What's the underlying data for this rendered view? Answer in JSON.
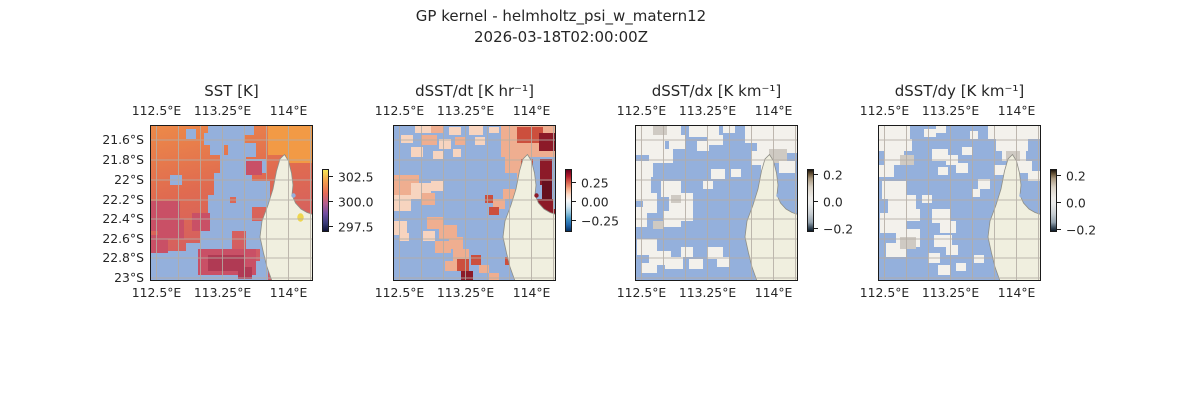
{
  "figure": {
    "title": "GP kernel - helmholtz_psi_w_matern12",
    "timestamp": "2026-03-18T02:00:00Z"
  },
  "axis": {
    "x_ticks": [
      "112.5°E",
      "113.25°E",
      "114°E"
    ],
    "y_ticks": [
      "21.6°S",
      "21.8°S",
      "22°S",
      "22.2°S",
      "22.4°S",
      "22.6°S",
      "22.8°S",
      "23°S"
    ]
  },
  "panels": [
    {
      "title": "SST [K]",
      "colorbar_ticks": [
        "302.5",
        "300.0",
        "297.5"
      ]
    },
    {
      "title": "dSST/dt [K hr⁻¹]",
      "colorbar_ticks": [
        "0.25",
        "0.00",
        "−0.25"
      ]
    },
    {
      "title": "dSST/dx [K km⁻¹]",
      "colorbar_ticks": [
        "0.2",
        "0.0",
        "−0.2"
      ]
    },
    {
      "title": "dSST/dy [K km⁻¹]",
      "colorbar_ticks": [
        "0.2",
        "0.0",
        "−0.2"
      ]
    }
  ],
  "chart_data": [
    {
      "type": "heatmap",
      "title": "SST [K]",
      "x_tick_labels": [
        "112.5°E",
        "113.25°E",
        "114°E"
      ],
      "y_tick_labels": [
        "21.6°S",
        "21.8°S",
        "22°S",
        "22.2°S",
        "22.4°S",
        "22.6°S",
        "22.8°S",
        "23°S"
      ],
      "lon_range_est": [
        112.4,
        114.2
      ],
      "lat_range_est": [
        -23.05,
        -21.45
      ],
      "colorbar_tick_values": [
        302.5,
        300.0,
        297.5
      ],
      "colormap": "thermal (dark navy to purple to orange to yellow)",
      "notes": "Satellite SST field ~297-303 K; light-blue = cloud/no-data mask; cream landmass (NW Cape peninsula) lower right; gray lat/lon gridlines every 0.25 deg lon / 0.2 deg lat",
      "palette": {
        "m": "#94b0dc",
        "r": "#c95066",
        "R": "#b03a54",
        "o": "#f29a45",
        "y": "#eed64e"
      },
      "cells": [
        [
          58,
          0,
          46,
          10,
          "m"
        ],
        [
          54,
          8,
          40,
          12,
          "m"
        ],
        [
          36,
          4,
          10,
          10,
          "m"
        ],
        [
          78,
          18,
          28,
          14,
          "m"
        ],
        [
          60,
          20,
          14,
          10,
          "m"
        ],
        [
          70,
          30,
          26,
          20,
          "m"
        ],
        [
          96,
          34,
          20,
          14,
          "m"
        ],
        [
          64,
          48,
          24,
          24,
          "m"
        ],
        [
          86,
          46,
          16,
          34,
          "m"
        ],
        [
          100,
          56,
          20,
          26,
          "m"
        ],
        [
          58,
          70,
          22,
          32,
          "m"
        ],
        [
          78,
          78,
          24,
          28,
          "m"
        ],
        [
          96,
          96,
          20,
          28,
          "m"
        ],
        [
          50,
          98,
          32,
          26,
          "m"
        ],
        [
          20,
          50,
          12,
          10,
          "m"
        ],
        [
          36,
          118,
          40,
          22,
          "m"
        ],
        [
          0,
          126,
          42,
          30,
          "m"
        ],
        [
          40,
          136,
          78,
          20,
          "m"
        ],
        [
          110,
          118,
          10,
          24,
          "m"
        ],
        [
          118,
          0,
          45,
          30,
          "o"
        ],
        [
          136,
          24,
          27,
          14,
          "o"
        ],
        [
          0,
          76,
          30,
          30,
          "r"
        ],
        [
          8,
          94,
          26,
          20,
          "r"
        ],
        [
          42,
          88,
          18,
          18,
          "r"
        ],
        [
          96,
          36,
          16,
          14,
          "r"
        ],
        [
          0,
          110,
          18,
          18,
          "r"
        ],
        [
          48,
          124,
          58,
          26,
          "r"
        ],
        [
          58,
          130,
          36,
          16,
          "R"
        ],
        [
          88,
          142,
          14,
          12,
          "R"
        ]
      ]
    },
    {
      "type": "heatmap",
      "title": "dSST/dt [K hr⁻¹]",
      "x_tick_labels": [
        "112.5°E",
        "113.25°E",
        "114°E"
      ],
      "y_tick_labels": [
        "21.6°S",
        "21.8°S",
        "22°S",
        "22.2°S",
        "22.4°S",
        "22.6°S",
        "22.8°S",
        "23°S"
      ],
      "lon_range_est": [
        112.4,
        114.2
      ],
      "lat_range_est": [
        -23.05,
        -21.45
      ],
      "colorbar_tick_values": [
        0.25,
        0.0,
        -0.25
      ],
      "colormap": "RdBu reversed (red positive, blue negative)",
      "notes": "Mostly small positive patches (salmon) with strong positive (dark red) values in the gulf east of the peninsula and near the coast; light-blue = masked",
      "palette": {
        "l": "#f7d4bf",
        "s": "#efae90",
        "r": "#cc4f3d",
        "d": "#8c1a28",
        "D": "#66101f"
      },
      "cells": [
        [
          22,
          0,
          16,
          8,
          "l"
        ],
        [
          38,
          0,
          12,
          8,
          "s"
        ],
        [
          56,
          2,
          12,
          8,
          "l"
        ],
        [
          76,
          0,
          14,
          10,
          "l"
        ],
        [
          96,
          2,
          10,
          6,
          "l"
        ],
        [
          8,
          10,
          12,
          8,
          "l"
        ],
        [
          28,
          10,
          16,
          10,
          "s"
        ],
        [
          46,
          14,
          12,
          10,
          "l"
        ],
        [
          62,
          12,
          10,
          8,
          "s"
        ],
        [
          82,
          12,
          10,
          8,
          "l"
        ],
        [
          18,
          22,
          12,
          10,
          "l"
        ],
        [
          40,
          26,
          10,
          8,
          "l"
        ],
        [
          60,
          24,
          8,
          8,
          "l"
        ],
        [
          0,
          50,
          26,
          22,
          "s"
        ],
        [
          18,
          58,
          20,
          16,
          "l"
        ],
        [
          0,
          70,
          18,
          16,
          "l"
        ],
        [
          28,
          68,
          14,
          12,
          "s"
        ],
        [
          38,
          56,
          12,
          10,
          "l"
        ],
        [
          108,
          0,
          55,
          32,
          "s"
        ],
        [
          124,
          2,
          26,
          16,
          "r"
        ],
        [
          146,
          8,
          17,
          18,
          "d"
        ],
        [
          112,
          26,
          22,
          22,
          "s"
        ],
        [
          124,
          42,
          14,
          16,
          "s"
        ],
        [
          128,
          34,
          12,
          18,
          "r"
        ],
        [
          147,
          34,
          12,
          26,
          "d"
        ],
        [
          149,
          56,
          10,
          22,
          "D"
        ],
        [
          144,
          74,
          16,
          14,
          "d"
        ],
        [
          150,
          84,
          13,
          12,
          "d"
        ],
        [
          92,
          70,
          8,
          8,
          "r"
        ],
        [
          100,
          74,
          12,
          10,
          "s"
        ],
        [
          96,
          82,
          10,
          8,
          "r"
        ],
        [
          110,
          64,
          12,
          10,
          "s"
        ],
        [
          34,
          92,
          16,
          12,
          "s"
        ],
        [
          46,
          100,
          18,
          14,
          "s"
        ],
        [
          30,
          106,
          12,
          10,
          "l"
        ],
        [
          42,
          116,
          16,
          12,
          "s"
        ],
        [
          56,
          112,
          14,
          12,
          "s"
        ],
        [
          60,
          124,
          16,
          12,
          "s"
        ],
        [
          52,
          136,
          12,
          10,
          "s"
        ],
        [
          64,
          134,
          12,
          12,
          "r"
        ],
        [
          68,
          146,
          12,
          10,
          "d"
        ],
        [
          78,
          130,
          10,
          10,
          "r"
        ],
        [
          86,
          140,
          10,
          8,
          "s"
        ],
        [
          0,
          96,
          14,
          14,
          "l"
        ],
        [
          6,
          108,
          10,
          8,
          "l"
        ],
        [
          112,
          132,
          8,
          8,
          "r"
        ],
        [
          96,
          148,
          10,
          8,
          "s"
        ]
      ]
    },
    {
      "type": "heatmap",
      "title": "dSST/dx [K km⁻¹]",
      "x_tick_labels": [
        "112.5°E",
        "113.25°E",
        "114°E"
      ],
      "y_tick_labels": [
        "21.6°S",
        "21.8°S",
        "22°S",
        "22.2°S",
        "22.4°S",
        "22.6°S",
        "22.8°S",
        "23°S"
      ],
      "lon_range_est": [
        112.4,
        114.2
      ],
      "lat_range_est": [
        -23.05,
        -21.45
      ],
      "colorbar_tick_values": [
        0.2,
        0.0,
        -0.2
      ],
      "colormap": "diverging brown-gray-blue, near-white center",
      "notes": "Gradient values near zero (whitish/pale-gray patches) over most retrieved pixels; light-blue = masked",
      "palette": {
        "w": "#f3f1ec",
        "g": "#cfcac3",
        "d": "#b7b1a9"
      },
      "cells": [
        [
          0,
          0,
          46,
          16,
          "w"
        ],
        [
          0,
          12,
          30,
          18,
          "w"
        ],
        [
          14,
          24,
          24,
          14,
          "w"
        ],
        [
          34,
          10,
          16,
          14,
          "w"
        ],
        [
          0,
          36,
          18,
          16,
          "w"
        ],
        [
          18,
          0,
          14,
          10,
          "g"
        ],
        [
          54,
          0,
          30,
          12,
          "w"
        ],
        [
          72,
          10,
          16,
          10,
          "w"
        ],
        [
          62,
          16,
          12,
          10,
          "w"
        ],
        [
          88,
          0,
          12,
          8,
          "w"
        ],
        [
          110,
          0,
          53,
          18,
          "w"
        ],
        [
          122,
          14,
          41,
          14,
          "w"
        ],
        [
          116,
          26,
          22,
          14,
          "w"
        ],
        [
          134,
          24,
          18,
          14,
          "g"
        ],
        [
          144,
          36,
          16,
          12,
          "w"
        ],
        [
          126,
          40,
          12,
          10,
          "w"
        ],
        [
          0,
          52,
          16,
          24,
          "w"
        ],
        [
          8,
          68,
          14,
          20,
          "w"
        ],
        [
          0,
          82,
          12,
          20,
          "w"
        ],
        [
          26,
          56,
          20,
          16,
          "w"
        ],
        [
          34,
          68,
          24,
          20,
          "w"
        ],
        [
          28,
          86,
          18,
          16,
          "w"
        ],
        [
          44,
          84,
          14,
          12,
          "w"
        ],
        [
          76,
          44,
          14,
          10,
          "w"
        ],
        [
          68,
          56,
          10,
          8,
          "w"
        ],
        [
          96,
          44,
          10,
          8,
          "w"
        ],
        [
          2,
          114,
          20,
          16,
          "w"
        ],
        [
          14,
          126,
          22,
          14,
          "w"
        ],
        [
          30,
          132,
          18,
          12,
          "w"
        ],
        [
          6,
          138,
          16,
          10,
          "w"
        ],
        [
          46,
          122,
          12,
          10,
          "w"
        ],
        [
          54,
          134,
          14,
          10,
          "w"
        ],
        [
          72,
          122,
          16,
          12,
          "w"
        ],
        [
          82,
          132,
          12,
          10,
          "w"
        ],
        [
          36,
          70,
          10,
          8,
          "g"
        ],
        [
          18,
          96,
          10,
          8,
          "g"
        ]
      ]
    },
    {
      "type": "heatmap",
      "title": "dSST/dy [K km⁻¹]",
      "x_tick_labels": [
        "112.5°E",
        "113.25°E",
        "114°E"
      ],
      "y_tick_labels": [
        "21.6°S",
        "21.8°S",
        "22°S",
        "22.2°S",
        "22.4°S",
        "22.6°S",
        "22.8°S",
        "23°S"
      ],
      "lon_range_est": [
        112.4,
        114.2
      ],
      "lat_range_est": [
        -23.05,
        -21.45
      ],
      "colorbar_tick_values": [
        0.2,
        0.0,
        -0.2
      ],
      "colormap": "diverging brown-gray-blue, near-white center",
      "notes": "Gradient values near zero (whitish/pale-gray patches); light-blue = masked",
      "palette": {
        "w": "#f3f1ec",
        "g": "#cfcac3",
        "d": "#b7b1a9"
      },
      "cells": [
        [
          0,
          0,
          32,
          14,
          "w"
        ],
        [
          0,
          10,
          22,
          16,
          "w"
        ],
        [
          16,
          14,
          18,
          12,
          "w"
        ],
        [
          6,
          26,
          20,
          14,
          "w"
        ],
        [
          22,
          30,
          14,
          10,
          "g"
        ],
        [
          0,
          40,
          16,
          12,
          "w"
        ],
        [
          46,
          4,
          12,
          8,
          "w"
        ],
        [
          58,
          0,
          10,
          8,
          "w"
        ],
        [
          54,
          24,
          16,
          12,
          "w"
        ],
        [
          68,
          30,
          12,
          10,
          "w"
        ],
        [
          78,
          38,
          12,
          10,
          "w"
        ],
        [
          60,
          42,
          10,
          8,
          "w"
        ],
        [
          84,
          22,
          10,
          8,
          "w"
        ],
        [
          92,
          6,
          8,
          8,
          "w"
        ],
        [
          110,
          0,
          53,
          14,
          "w"
        ],
        [
          118,
          12,
          32,
          14,
          "w"
        ],
        [
          124,
          24,
          24,
          12,
          "w"
        ],
        [
          128,
          26,
          14,
          10,
          "g"
        ],
        [
          138,
          36,
          16,
          12,
          "w"
        ],
        [
          116,
          40,
          12,
          10,
          "w"
        ],
        [
          150,
          46,
          13,
          10,
          "w"
        ],
        [
          4,
          56,
          24,
          18,
          "w"
        ],
        [
          10,
          70,
          28,
          22,
          "w"
        ],
        [
          2,
          88,
          26,
          20,
          "w"
        ],
        [
          18,
          104,
          24,
          18,
          "w"
        ],
        [
          8,
          118,
          20,
          14,
          "w"
        ],
        [
          28,
          84,
          14,
          12,
          "w"
        ],
        [
          22,
          112,
          16,
          12,
          "g"
        ],
        [
          54,
          84,
          18,
          14,
          "w"
        ],
        [
          62,
          96,
          16,
          12,
          "w"
        ],
        [
          56,
          110,
          18,
          12,
          "w"
        ],
        [
          68,
          120,
          12,
          10,
          "w"
        ],
        [
          50,
          128,
          12,
          10,
          "w"
        ],
        [
          44,
          70,
          10,
          8,
          "w"
        ],
        [
          100,
          54,
          12,
          10,
          "w"
        ],
        [
          94,
          64,
          8,
          8,
          "w"
        ],
        [
          60,
          140,
          12,
          10,
          "w"
        ],
        [
          78,
          138,
          10,
          8,
          "w"
        ],
        [
          96,
          130,
          10,
          8,
          "w"
        ]
      ]
    }
  ],
  "colors": {
    "ocean_mask": "#94b0dc",
    "land": "#f0efdf",
    "gridline": "#b4ada4",
    "text": "#262626"
  }
}
